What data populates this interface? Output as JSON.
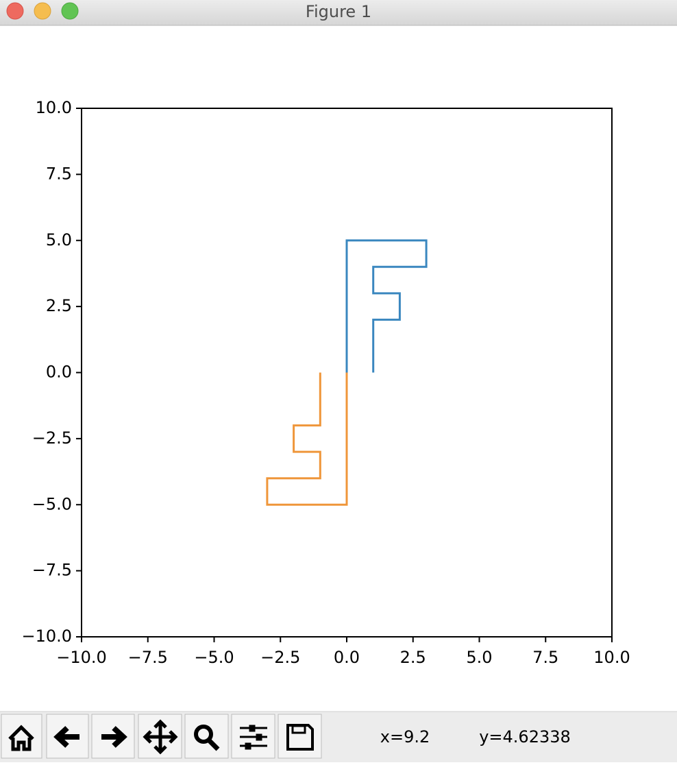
{
  "window": {
    "title": "Figure 1"
  },
  "chart_data": {
    "type": "line",
    "series": [
      {
        "color": "#3a87bf",
        "x": [
          0,
          0,
          3,
          3,
          1,
          1,
          2,
          2,
          1,
          1
        ],
        "values": [
          0,
          5,
          5,
          4,
          4,
          3,
          3,
          2,
          2,
          0
        ]
      },
      {
        "color": "#ef963a",
        "x": [
          0,
          0,
          -3,
          -3,
          -1,
          -1,
          -2,
          -2,
          -1,
          -1
        ],
        "values": [
          0,
          -5,
          -5,
          -4,
          -4,
          -3,
          -3,
          -2,
          -2,
          0
        ]
      }
    ],
    "xlim": [
      -10,
      10
    ],
    "ylim": [
      -10,
      10
    ],
    "xticks": [
      {
        "value": -10,
        "label": "−10.0"
      },
      {
        "value": -7.5,
        "label": "−7.5"
      },
      {
        "value": -5,
        "label": "−5.0"
      },
      {
        "value": -2.5,
        "label": "−2.5"
      },
      {
        "value": 0,
        "label": "0.0"
      },
      {
        "value": 2.5,
        "label": "2.5"
      },
      {
        "value": 5,
        "label": "5.0"
      },
      {
        "value": 7.5,
        "label": "7.5"
      },
      {
        "value": 10,
        "label": "10.0"
      }
    ],
    "yticks": [
      {
        "value": -10,
        "label": "−10.0"
      },
      {
        "value": -7.5,
        "label": "−7.5"
      },
      {
        "value": -5,
        "label": "−5.0"
      },
      {
        "value": -2.5,
        "label": "−2.5"
      },
      {
        "value": 0,
        "label": "0.0"
      },
      {
        "value": 2.5,
        "label": "2.5"
      },
      {
        "value": 5,
        "label": "5.0"
      },
      {
        "value": 7.5,
        "label": "7.5"
      },
      {
        "value": 10,
        "label": "10.0"
      }
    ],
    "grid": false
  },
  "status": {
    "x": "x=9.2",
    "y": "y=4.62338"
  }
}
